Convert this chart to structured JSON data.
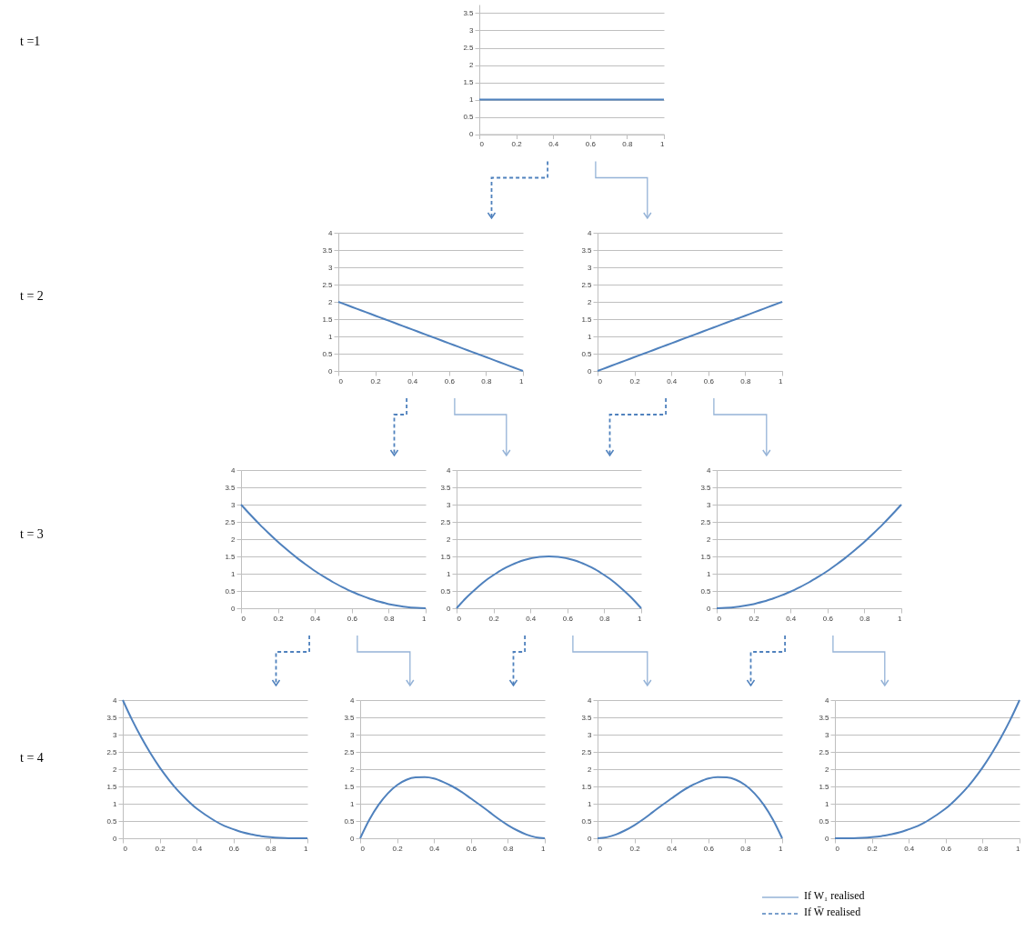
{
  "chart_data": [
    {
      "type": "line",
      "x": [
        0,
        0.05,
        0.1,
        0.15,
        0.2,
        0.25,
        0.3,
        0.35,
        0.4,
        0.45,
        0.5,
        0.55,
        0.6,
        0.65,
        0.7,
        0.75,
        0.8,
        0.85,
        0.9,
        0.95,
        1
      ],
      "series": [
        {
          "color": "#4f81bd",
          "values": [
            1,
            1,
            1,
            1,
            1,
            1,
            1,
            1,
            1,
            1,
            1,
            1,
            1,
            1,
            1,
            1,
            1,
            1,
            1,
            1,
            1
          ]
        }
      ],
      "xlim": [
        0,
        1
      ],
      "xticks": [
        0,
        0.2,
        0.4,
        0.6,
        0.8,
        1
      ],
      "ylim": [
        0,
        3.75
      ],
      "yticks": [
        0,
        0.5,
        1,
        1.5,
        2,
        2.5,
        3,
        3.5
      ],
      "grid": "y",
      "annotations": [
        "t =1"
      ]
    },
    {
      "type": "line",
      "x": [
        0,
        0.05,
        0.1,
        0.15,
        0.2,
        0.25,
        0.3,
        0.35,
        0.4,
        0.45,
        0.5,
        0.55,
        0.6,
        0.65,
        0.7,
        0.75,
        0.8,
        0.85,
        0.9,
        0.95,
        1
      ],
      "series": [
        {
          "color": "#4f81bd",
          "values": [
            2,
            1.9,
            1.8,
            1.7,
            1.6,
            1.5,
            1.4,
            1.3,
            1.2,
            1.1,
            1,
            0.9,
            0.8,
            0.7,
            0.6,
            0.5,
            0.4,
            0.3,
            0.2,
            0.1,
            0
          ]
        }
      ],
      "xlim": [
        0,
        1
      ],
      "xticks": [
        0,
        0.2,
        0.4,
        0.6,
        0.8,
        1
      ],
      "ylim": [
        0,
        4
      ],
      "yticks": [
        0,
        0.5,
        1,
        1.5,
        2,
        2.5,
        3,
        3.5,
        4
      ],
      "grid": "y",
      "annotations": [
        "t = 2"
      ]
    },
    {
      "type": "line",
      "x": [
        0,
        0.05,
        0.1,
        0.15,
        0.2,
        0.25,
        0.3,
        0.35,
        0.4,
        0.45,
        0.5,
        0.55,
        0.6,
        0.65,
        0.7,
        0.75,
        0.8,
        0.85,
        0.9,
        0.95,
        1
      ],
      "series": [
        {
          "color": "#4f81bd",
          "values": [
            0,
            0.1,
            0.2,
            0.3,
            0.4,
            0.5,
            0.6,
            0.7,
            0.8,
            0.9,
            1,
            1.1,
            1.2,
            1.3,
            1.4,
            1.5,
            1.6,
            1.7,
            1.8,
            1.9,
            2
          ]
        }
      ],
      "xlim": [
        0,
        1
      ],
      "xticks": [
        0,
        0.2,
        0.4,
        0.6,
        0.8,
        1
      ],
      "ylim": [
        0,
        4
      ],
      "yticks": [
        0,
        0.5,
        1,
        1.5,
        2,
        2.5,
        3,
        3.5,
        4
      ],
      "grid": "y"
    },
    {
      "type": "line",
      "x": [
        0,
        0.05,
        0.1,
        0.15,
        0.2,
        0.25,
        0.3,
        0.35,
        0.4,
        0.45,
        0.5,
        0.55,
        0.6,
        0.65,
        0.7,
        0.75,
        0.8,
        0.85,
        0.9,
        0.95,
        1
      ],
      "series": [
        {
          "color": "#4f81bd",
          "values": [
            3,
            2.71,
            2.43,
            2.17,
            1.92,
            1.69,
            1.47,
            1.27,
            1.08,
            0.91,
            0.75,
            0.61,
            0.48,
            0.37,
            0.27,
            0.19,
            0.12,
            0.07,
            0.03,
            0.01,
            0
          ]
        }
      ],
      "xlim": [
        0,
        1
      ],
      "xticks": [
        0,
        0.2,
        0.4,
        0.6,
        0.8,
        1
      ],
      "ylim": [
        0,
        4
      ],
      "yticks": [
        0,
        0.5,
        1,
        1.5,
        2,
        2.5,
        3,
        3.5,
        4
      ],
      "grid": "y",
      "annotations": [
        "t = 3"
      ]
    },
    {
      "type": "line",
      "x": [
        0,
        0.05,
        0.1,
        0.15,
        0.2,
        0.25,
        0.3,
        0.35,
        0.4,
        0.45,
        0.5,
        0.55,
        0.6,
        0.65,
        0.7,
        0.75,
        0.8,
        0.85,
        0.9,
        0.95,
        1
      ],
      "series": [
        {
          "color": "#4f81bd",
          "values": [
            0,
            0.29,
            0.54,
            0.77,
            0.96,
            1.13,
            1.26,
            1.37,
            1.44,
            1.49,
            1.5,
            1.49,
            1.44,
            1.37,
            1.26,
            1.13,
            0.96,
            0.77,
            0.54,
            0.29,
            0
          ]
        }
      ],
      "xlim": [
        0,
        1
      ],
      "xticks": [
        0,
        0.2,
        0.4,
        0.6,
        0.8,
        1
      ],
      "ylim": [
        0,
        4
      ],
      "yticks": [
        0,
        0.5,
        1,
        1.5,
        2,
        2.5,
        3,
        3.5,
        4
      ],
      "grid": "y"
    },
    {
      "type": "line",
      "x": [
        0,
        0.05,
        0.1,
        0.15,
        0.2,
        0.25,
        0.3,
        0.35,
        0.4,
        0.45,
        0.5,
        0.55,
        0.6,
        0.65,
        0.7,
        0.75,
        0.8,
        0.85,
        0.9,
        0.95,
        1
      ],
      "series": [
        {
          "color": "#4f81bd",
          "values": [
            0,
            0.01,
            0.03,
            0.07,
            0.12,
            0.19,
            0.27,
            0.37,
            0.48,
            0.61,
            0.75,
            0.91,
            1.08,
            1.27,
            1.47,
            1.69,
            1.92,
            2.17,
            2.43,
            2.71,
            3
          ]
        }
      ],
      "xlim": [
        0,
        1
      ],
      "xticks": [
        0,
        0.2,
        0.4,
        0.6,
        0.8,
        1
      ],
      "ylim": [
        0,
        4
      ],
      "yticks": [
        0,
        0.5,
        1,
        1.5,
        2,
        2.5,
        3,
        3.5,
        4
      ],
      "grid": "y"
    },
    {
      "type": "line",
      "x": [
        0,
        0.05,
        0.1,
        0.15,
        0.2,
        0.25,
        0.3,
        0.35,
        0.4,
        0.45,
        0.5,
        0.55,
        0.6,
        0.65,
        0.7,
        0.75,
        0.8,
        0.85,
        0.9,
        0.95,
        1
      ],
      "series": [
        {
          "color": "#4f81bd",
          "values": [
            4,
            3.43,
            2.92,
            2.46,
            2.05,
            1.69,
            1.37,
            1.1,
            0.86,
            0.67,
            0.5,
            0.36,
            0.26,
            0.17,
            0.11,
            0.06,
            0.03,
            0.01,
            0,
            0,
            0
          ]
        }
      ],
      "xlim": [
        0,
        1
      ],
      "xticks": [
        0,
        0.2,
        0.4,
        0.6,
        0.8,
        1
      ],
      "ylim": [
        0,
        4
      ],
      "yticks": [
        0,
        0.5,
        1,
        1.5,
        2,
        2.5,
        3,
        3.5,
        4
      ],
      "grid": "y",
      "annotations": [
        "t = 4"
      ]
    },
    {
      "type": "line",
      "x": [
        0,
        0.05,
        0.1,
        0.15,
        0.2,
        0.25,
        0.3,
        0.35,
        0.4,
        0.45,
        0.5,
        0.55,
        0.6,
        0.65,
        0.7,
        0.75,
        0.8,
        0.85,
        0.9,
        0.95,
        1
      ],
      "series": [
        {
          "color": "#4f81bd",
          "values": [
            0,
            0.54,
            0.97,
            1.3,
            1.54,
            1.69,
            1.76,
            1.77,
            1.73,
            1.63,
            1.5,
            1.34,
            1.15,
            0.96,
            0.76,
            0.56,
            0.38,
            0.23,
            0.11,
            0.03,
            0
          ]
        }
      ],
      "xlim": [
        0,
        1
      ],
      "xticks": [
        0,
        0.2,
        0.4,
        0.6,
        0.8,
        1
      ],
      "ylim": [
        0,
        4
      ],
      "yticks": [
        0,
        0.5,
        1,
        1.5,
        2,
        2.5,
        3,
        3.5,
        4
      ],
      "grid": "y"
    },
    {
      "type": "line",
      "x": [
        0,
        0.05,
        0.1,
        0.15,
        0.2,
        0.25,
        0.3,
        0.35,
        0.4,
        0.45,
        0.5,
        0.55,
        0.6,
        0.65,
        0.7,
        0.75,
        0.8,
        0.85,
        0.9,
        0.95,
        1
      ],
      "series": [
        {
          "color": "#4f81bd",
          "values": [
            0,
            0.03,
            0.11,
            0.23,
            0.38,
            0.56,
            0.76,
            0.96,
            1.15,
            1.34,
            1.5,
            1.63,
            1.73,
            1.77,
            1.76,
            1.69,
            1.54,
            1.3,
            0.97,
            0.54,
            0
          ]
        }
      ],
      "xlim": [
        0,
        1
      ],
      "xticks": [
        0,
        0.2,
        0.4,
        0.6,
        0.8,
        1
      ],
      "ylim": [
        0,
        4
      ],
      "yticks": [
        0,
        0.5,
        1,
        1.5,
        2,
        2.5,
        3,
        3.5,
        4
      ],
      "grid": "y"
    },
    {
      "type": "line",
      "x": [
        0,
        0.05,
        0.1,
        0.15,
        0.2,
        0.25,
        0.3,
        0.35,
        0.4,
        0.45,
        0.5,
        0.55,
        0.6,
        0.65,
        0.7,
        0.75,
        0.8,
        0.85,
        0.9,
        0.95,
        1
      ],
      "series": [
        {
          "color": "#4f81bd",
          "values": [
            0,
            0,
            0,
            0.01,
            0.03,
            0.06,
            0.11,
            0.17,
            0.26,
            0.36,
            0.5,
            0.67,
            0.86,
            1.1,
            1.37,
            1.69,
            2.05,
            2.46,
            2.92,
            3.43,
            4
          ]
        }
      ],
      "xlim": [
        0,
        1
      ],
      "xticks": [
        0,
        0.2,
        0.4,
        0.6,
        0.8,
        1
      ],
      "ylim": [
        0,
        4
      ],
      "yticks": [
        0,
        0.5,
        1,
        1.5,
        2,
        2.5,
        3,
        3.5,
        4
      ],
      "grid": "y",
      "annotations": [
        "If W₁ realised",
        "If W̄ realised"
      ]
    }
  ]
}
